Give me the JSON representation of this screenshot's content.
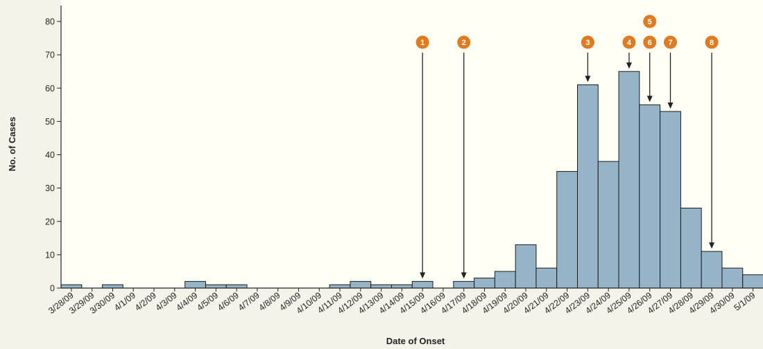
{
  "chart_data": {
    "type": "bar",
    "title": "",
    "xlabel": "Date of Onset",
    "ylabel": "No. of Cases",
    "ylim": [
      0,
      85
    ],
    "yticks": [
      0,
      10,
      20,
      30,
      40,
      50,
      60,
      70,
      80
    ],
    "grid": false,
    "colors": {
      "bar_fill": "#95b4c8",
      "bar_stroke": "#1a1a1a",
      "marker_fill": "#e07b1f",
      "plot_bg": "#fffff6",
      "page_bg": "#f3f3ea"
    },
    "categories": [
      "3/28/09",
      "3/29/09",
      "3/30/09",
      "4/1/09",
      "4/2/09",
      "4/3/09",
      "4/4/09",
      "4/5/09",
      "4/6/09",
      "4/7/09",
      "4/8/09",
      "4/9/09",
      "4/10/09",
      "4/11/09",
      "4/12/09",
      "4/13/09",
      "4/14/09",
      "4/15/09",
      "4/16/09",
      "4/17/09",
      "4/18/09",
      "4/19/09",
      "4/20/09",
      "4/21/09",
      "4/22/09",
      "4/23/09",
      "4/24/09",
      "4/25/09",
      "4/26/09",
      "4/27/09",
      "4/28/09",
      "4/29/09",
      "4/30/09",
      "5/1/09"
    ],
    "values": [
      1,
      0,
      1,
      0,
      0,
      0,
      2,
      1,
      1,
      0,
      0,
      0,
      0,
      1,
      2,
      1,
      1,
      2,
      0,
      2,
      3,
      5,
      13,
      6,
      35,
      61,
      38,
      65,
      55,
      53,
      24,
      11,
      6,
      4
    ],
    "annotations": [
      {
        "label": "1",
        "category": "4/15/09"
      },
      {
        "label": "2",
        "category": "4/17/09"
      },
      {
        "label": "3",
        "category": "4/23/09"
      },
      {
        "label": "4",
        "category": "4/25/09"
      },
      {
        "label": "5",
        "category": "4/26/09"
      },
      {
        "label": "6",
        "category": "4/26/09"
      },
      {
        "label": "7",
        "category": "4/27/09"
      },
      {
        "label": "8",
        "category": "4/29/09"
      }
    ]
  }
}
